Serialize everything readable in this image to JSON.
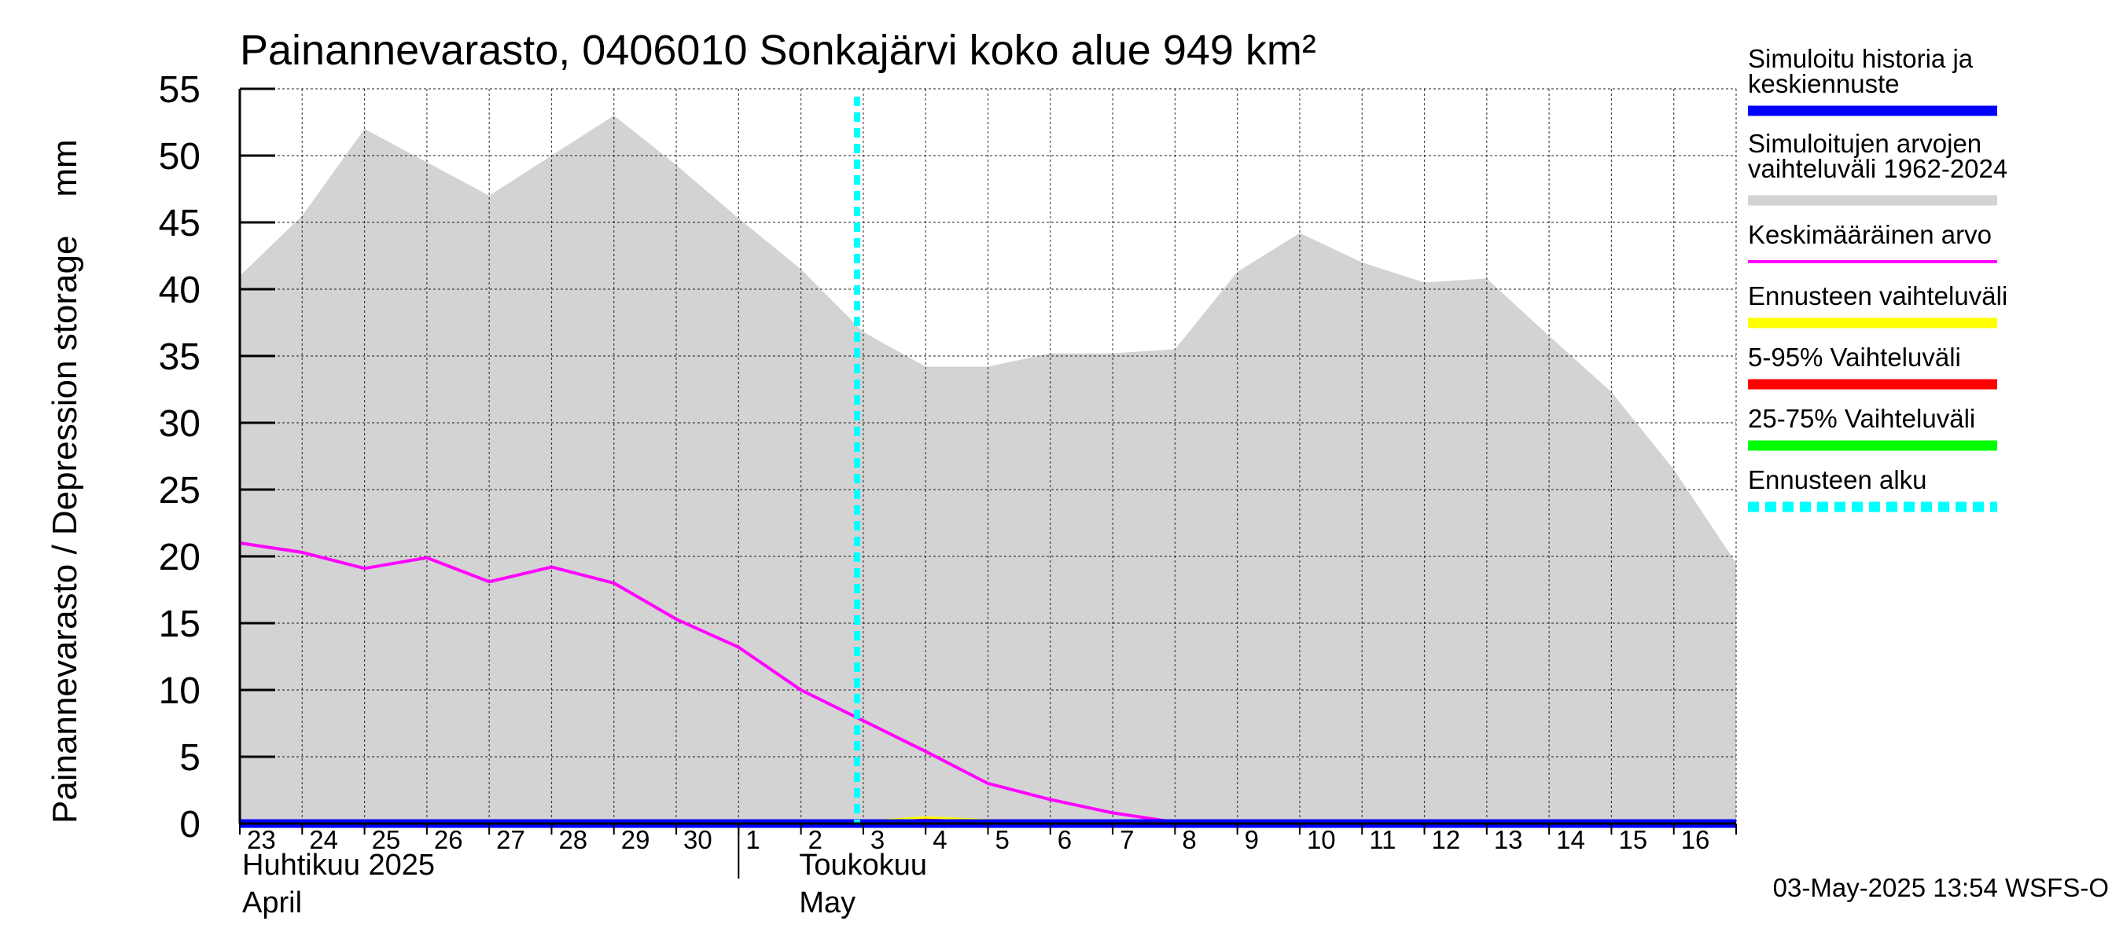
{
  "chart_data": {
    "type": "area",
    "title": "Painannevarasto, 0406010 Sonkajärvi koko alue 949 km²",
    "ylabel": "Painannevarasto / Depression storage    mm",
    "ylim": [
      0,
      55
    ],
    "yticks": [
      0,
      5,
      10,
      15,
      20,
      25,
      30,
      35,
      40,
      45,
      50,
      55
    ],
    "x_day_labels": [
      "23",
      "24",
      "25",
      "26",
      "27",
      "28",
      "29",
      "30",
      "1",
      "2",
      "3",
      "4",
      "5",
      "6",
      "7",
      "8",
      "9",
      "10",
      "11",
      "12",
      "13",
      "14",
      "15",
      "16"
    ],
    "month_labels": [
      {
        "line1": "Huhtikuu  2025",
        "line2": "April"
      },
      {
        "line1": "Toukokuu",
        "line2": "May"
      }
    ],
    "x_dates": [
      "2025-04-23",
      "2025-04-24",
      "2025-04-25",
      "2025-04-26",
      "2025-04-27",
      "2025-04-28",
      "2025-04-29",
      "2025-04-30",
      "2025-05-01",
      "2025-05-02",
      "2025-05-03",
      "2025-05-04",
      "2025-05-05",
      "2025-05-06",
      "2025-05-07",
      "2025-05-08",
      "2025-05-09",
      "2025-05-10",
      "2025-05-11",
      "2025-05-12",
      "2025-05-13",
      "2025-05-14",
      "2025-05-15",
      "2025-05-16",
      "2025-05-17"
    ],
    "forecast_start": "2025-05-03",
    "series": [
      {
        "name": "Simuloitujen arvojen vaihteluväli 1962-2024",
        "kind": "range",
        "color": "#d3d3d3",
        "upper": [
          41,
          45.5,
          52,
          49.5,
          47,
          50,
          53,
          49.3,
          45.3,
          41.5,
          36.8,
          34.2,
          34.2,
          35.2,
          35.2,
          35.5,
          41.3,
          44.2,
          42,
          40.5,
          40.8,
          36.5,
          32.3,
          26.5,
          19.5
        ],
        "lower": [
          0,
          0,
          0,
          0,
          0,
          0,
          0,
          0,
          0,
          0,
          0,
          0,
          0,
          0,
          0,
          0,
          0,
          0,
          0,
          0,
          0,
          0,
          0,
          0,
          0
        ]
      },
      {
        "name": "Keskimääräinen arvo",
        "kind": "line",
        "color": "#ff00ff",
        "values": [
          21,
          20.3,
          19.1,
          19.9,
          18.1,
          19.2,
          18,
          15.3,
          13.2,
          10,
          7.7,
          5.4,
          3,
          1.8,
          0.8,
          0.1,
          -0.2,
          -0.2,
          -0.2,
          -0.2,
          -0.2,
          -0.2,
          -0.2,
          -0.2,
          -0.2
        ]
      },
      {
        "name": "Ennusteen vaihteluväli",
        "kind": "line",
        "color": "#ffff00",
        "values": [
          0,
          0,
          0,
          0,
          0,
          0,
          0,
          0,
          0,
          0,
          0.1,
          0.4,
          0.2,
          0.15,
          0.1,
          0.05,
          0.02,
          0,
          0,
          0,
          0,
          0,
          0,
          0,
          0
        ]
      },
      {
        "name": "5-95% Vaihteluväli",
        "kind": "line",
        "color": "#ff0000",
        "values": [
          0,
          0,
          0,
          0,
          0,
          0,
          0,
          0,
          0,
          0,
          0.05,
          0.25,
          0.12,
          0.1,
          0.06,
          0.03,
          0.01,
          0,
          0,
          0,
          0,
          0,
          0,
          0,
          0
        ]
      },
      {
        "name": "Simuloitu historia ja keskiennuste",
        "kind": "line",
        "color": "#0000ff",
        "values": [
          0,
          0,
          0,
          0,
          0,
          0,
          0,
          0,
          0,
          0,
          0,
          0,
          0,
          0,
          0,
          0,
          0,
          0,
          0,
          0,
          0,
          0,
          0,
          0,
          0
        ]
      }
    ],
    "legend": [
      {
        "label": "Simuloitu historia ja keskiennuste",
        "color": "#0000ff",
        "style": "solid",
        "width": "thick"
      },
      {
        "label": "Simuloitujen arvojen vaihteluväli 1962-2024",
        "color": "#d3d3d3",
        "style": "solid",
        "width": "thick"
      },
      {
        "label": "Keskimääräinen arvo",
        "color": "#ff00ff",
        "style": "solid",
        "width": "thin"
      },
      {
        "label": "Ennusteen vaihteluväli",
        "color": "#ffff00",
        "style": "solid",
        "width": "thick"
      },
      {
        "label": "5-95% Vaihteluväli",
        "color": "#ff0000",
        "style": "solid",
        "width": "thick"
      },
      {
        "label": "25-75% Vaihteluväli",
        "color": "#00ff00",
        "style": "solid",
        "width": "thick"
      },
      {
        "label": "Ennusteen alku",
        "color": "#00ffff",
        "style": "dashed",
        "width": "thick"
      }
    ],
    "legend_placement": "right",
    "grid": true,
    "timestamp": "03-May-2025 13:54 WSFS-O"
  }
}
